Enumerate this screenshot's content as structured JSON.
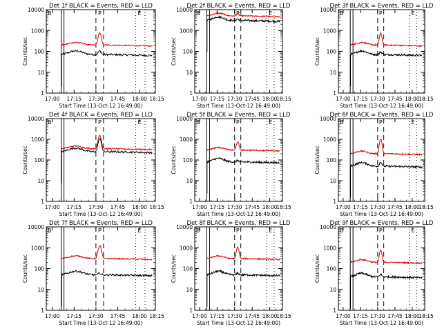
{
  "chart_data": {
    "type": "line",
    "y_scale": "log",
    "ylim": [
      1,
      10000
    ],
    "ytick_labels": [
      "1",
      "10",
      "100",
      "1000",
      "10000"
    ],
    "ylabel": "Counts/sec",
    "xlabel": "Start Time (13-Oct-12 16:49:00)",
    "xtick_labels": [
      "17:00",
      "17:15",
      "17:30",
      "17:45",
      "18:00",
      "18:15"
    ],
    "legend": "BLACK = Events, RED = LLD",
    "markers": [
      "B",
      "P",
      "E"
    ],
    "panels": [
      {
        "title": "Det 1f BLACK = Events, RED = LLD",
        "black_level": 70,
        "red_level": 200,
        "peak_red": 700,
        "peak_black": 90,
        "peak_marker": "P"
      },
      {
        "title": "Det 2f BLACK = Events, RED = LLD",
        "black_level": 3000,
        "red_level": 5000,
        "peak_red": 5500,
        "peak_black": 3000,
        "peak_marker": "P"
      },
      {
        "title": "Det 3f BLACK = Events, RED = LLD",
        "black_level": 70,
        "red_level": 200,
        "peak_red": 700,
        "peak_black": 80,
        "peak_marker": "P"
      },
      {
        "title": "Det 4f BLACK = Events, RED = LLD",
        "black_level": 250,
        "red_level": 350,
        "peak_red": 1500,
        "peak_black": 1000,
        "peak_marker": "P"
      },
      {
        "title": "Det 5f BLACK = Events, RED = LLD",
        "black_level": 80,
        "red_level": 300,
        "peak_red": 700,
        "peak_black": 80,
        "peak_marker": "P"
      },
      {
        "title": "Det 6f BLACK = Events, RED = LLD",
        "black_level": 50,
        "red_level": 200,
        "peak_red": 1000,
        "peak_black": 70,
        "peak_marker": "P"
      },
      {
        "title": "Det 7f BLACK = Events, RED = LLD",
        "black_level": 50,
        "red_level": 300,
        "peak_red": 1200,
        "peak_black": 50,
        "peak_marker": "P"
      },
      {
        "title": "Det 8f BLACK = Events, RED = LLD",
        "black_level": 50,
        "red_level": 300,
        "peak_red": 1000,
        "peak_black": 50,
        "peak_marker": "P"
      },
      {
        "title": "Det 9f BLACK = Events, RED = LLD",
        "black_level": 40,
        "red_level": 200,
        "peak_red": 700,
        "peak_black": 45,
        "peak_marker": "P"
      }
    ]
  },
  "colors": {
    "red_series": "#dd0000",
    "black_series": "#000000",
    "axes": "#000000",
    "background": "#ffffff"
  }
}
